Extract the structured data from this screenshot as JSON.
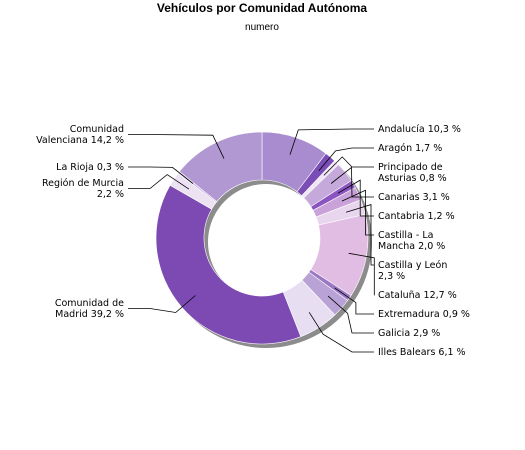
{
  "chart_data": {
    "type": "pie",
    "variant": "donut",
    "title": "Vehículos por Comunidad Autónoma",
    "subtitle": "numero",
    "unit": "%",
    "slices": [
      {
        "name": "Andalucía",
        "value": 10.3,
        "label": "Andalucía 10,3 %",
        "color": "#a98ccf"
      },
      {
        "name": "Aragón",
        "value": 1.7,
        "label": "Aragón 1,7 %",
        "color": "#7a4cb5"
      },
      {
        "name": "Principado de Asturias",
        "value": 0.8,
        "label": "Principado de|Asturias 0,8 %",
        "color": "#efe5f5"
      },
      {
        "name": "Canarias",
        "value": 3.1,
        "label": "Canarias 3,1 %",
        "color": "#c5a9da"
      },
      {
        "name": "Cantabria",
        "value": 1.2,
        "label": "Cantabria 1,2 %",
        "color": "#8a55c0"
      },
      {
        "name": "Castilla - La Mancha",
        "value": 2.0,
        "label": "Castilla - La|Mancha 2,0 %",
        "color": "#c8a2d8"
      },
      {
        "name": "Castilla y León",
        "value": 2.3,
        "label": "Castilla y León|2,3 %",
        "color": "#e8d6ee"
      },
      {
        "name": "Cataluña",
        "value": 12.7,
        "label": "Cataluña 12,7 %",
        "color": "#e2bde3"
      },
      {
        "name": "Extremadura",
        "value": 0.9,
        "label": "Extremadura 0,9 %",
        "color": "#9a78c4"
      },
      {
        "name": "Galicia",
        "value": 2.9,
        "label": "Galicia 2,9 %",
        "color": "#b9a2d6"
      },
      {
        "name": "Illes Balears",
        "value": 6.1,
        "label": "Illes Balears 6,1 %",
        "color": "#e8def2"
      },
      {
        "name": "Comunidad de Madrid",
        "value": 39.2,
        "label": "Comunidad de|Madrid 39,2 %",
        "color": "#7c4ab2"
      },
      {
        "name": "Región de Murcia",
        "value": 2.2,
        "label": "Región de Murcia|2,2 %",
        "color": "#ede2f2"
      },
      {
        "name": "La Rioja",
        "value": 0.3,
        "label": "La Rioja 0,3 %",
        "color": "#c5b0de"
      },
      {
        "name": "Comunidad Valenciana",
        "value": 14.2,
        "label": "Comunidad|Valenciana 14,2 %",
        "color": "#b198d2"
      }
    ]
  }
}
